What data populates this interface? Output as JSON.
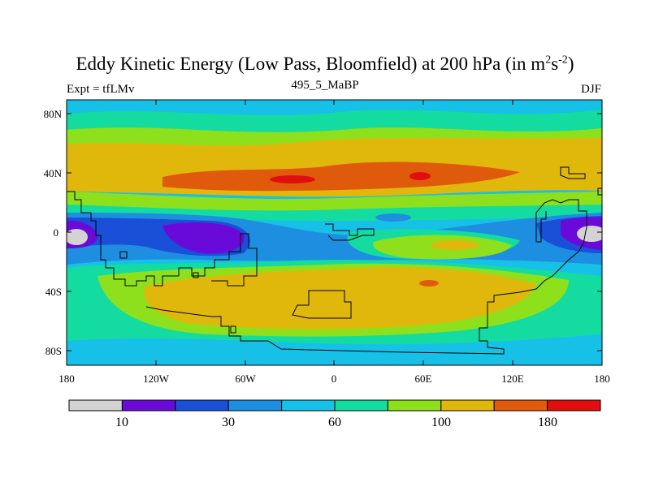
{
  "title": {
    "main": "Eddy Kinetic Energy (Low Pass, Bloomfield) at 200 hPa (in m",
    "sup1": "2",
    "mid": "s",
    "sup2": "-2",
    "end": ")"
  },
  "subtitle": {
    "left": "Expt = tfLMv",
    "center": "495_5_MaBP",
    "right": "DJF"
  },
  "axes": {
    "lat_ticks": [
      "80N",
      "40N",
      "0",
      "40S",
      "80S"
    ],
    "lon_ticks": [
      "180",
      "120W",
      "60W",
      "0",
      "60E",
      "120E",
      "180"
    ]
  },
  "colorbar": {
    "colors": [
      "#d3d3d3",
      "#6a0ad8",
      "#1a4fd8",
      "#1e8ee0",
      "#17c0e6",
      "#14dca0",
      "#8ee01c",
      "#e0b80c",
      "#e05a0c",
      "#e00e0e"
    ],
    "labels": [
      "10",
      "30",
      "60",
      "100",
      "180"
    ]
  }
}
